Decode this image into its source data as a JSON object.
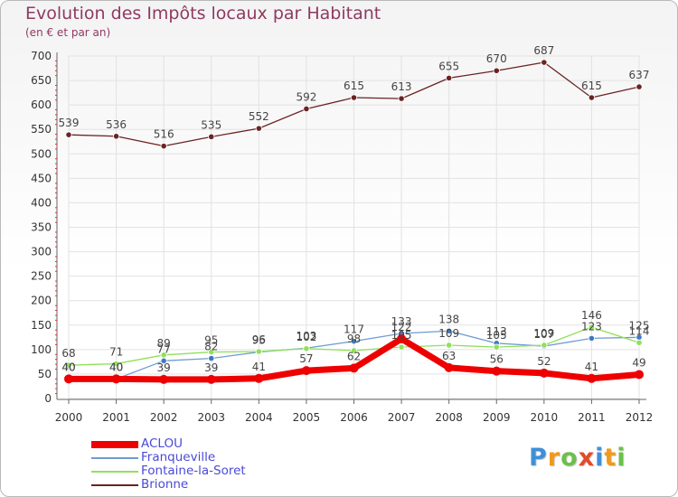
{
  "chart_data": {
    "type": "line",
    "title": "Evolution des Impôts locaux par Habitant",
    "subtitle": "(en € et par an)",
    "xlabel": "",
    "ylabel": "",
    "ylim": [
      0,
      700
    ],
    "yticks": [
      0,
      50,
      100,
      150,
      200,
      250,
      300,
      350,
      400,
      450,
      500,
      550,
      600,
      650,
      700
    ],
    "categories": [
      "2000",
      "2001",
      "2002",
      "2003",
      "2004",
      "2005",
      "2006",
      "2007",
      "2008",
      "2009",
      "2010",
      "2011",
      "2012"
    ],
    "series": [
      {
        "name": "ACLOU",
        "color": "#ee0000",
        "values": [
          40,
          40,
          39,
          39,
          41,
          57,
          62,
          122,
          63,
          56,
          52,
          41,
          49
        ]
      },
      {
        "name": "Franqueville",
        "color": "#6d9cd0",
        "values": [
          40,
          40,
          77,
          82,
          95,
          103,
          117,
          133,
          138,
          113,
          107,
          123,
          125
        ]
      },
      {
        "name": "Fontaine-la-Soret",
        "color": "#8fe05a",
        "values": [
          68,
          71,
          89,
          95,
          96,
          102,
          98,
          105,
          109,
          105,
          109,
          146,
          114
        ]
      },
      {
        "name": "Brionne",
        "color": "#6b2323",
        "values": [
          539,
          536,
          516,
          535,
          552,
          592,
          615,
          613,
          655,
          670,
          687,
          615,
          637
        ]
      }
    ],
    "legend_position": "bottom-left"
  },
  "legend": {
    "items": [
      {
        "label": "ACLOU"
      },
      {
        "label": "Franqueville"
      },
      {
        "label": "Fontaine-la-Soret"
      },
      {
        "label": "Brionne"
      }
    ]
  },
  "logo": {
    "letters": [
      "P",
      "r",
      "o",
      "x",
      "i",
      "t",
      "i"
    ],
    "colors": [
      "#3f8fd8",
      "#f09a1c",
      "#6cc04a",
      "#e24b2a",
      "#3f8fd8",
      "#f09a1c",
      "#6cc04a"
    ]
  }
}
